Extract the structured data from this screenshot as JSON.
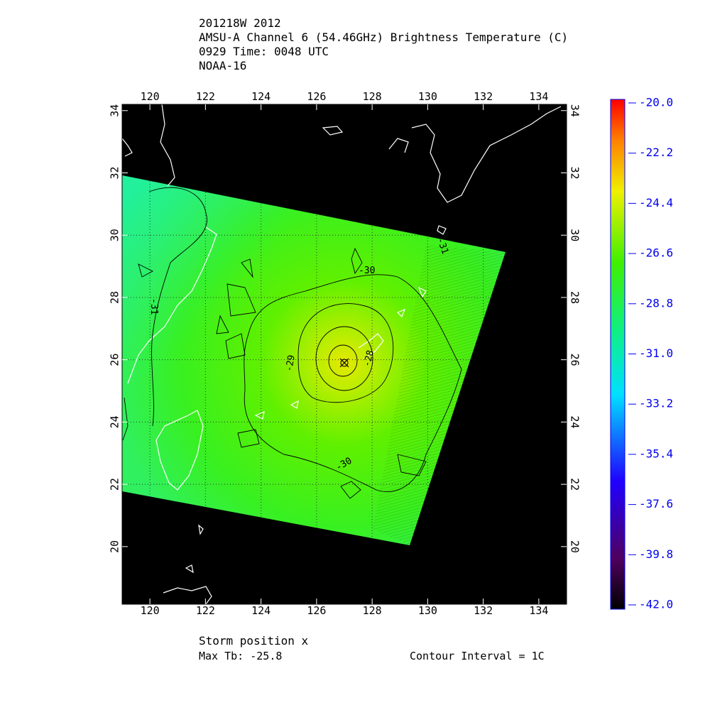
{
  "header": {
    "lines": [
      "201218W 2012",
      "AMSU-A Channel 6 (54.46GHz) Brightness Temperature (C)",
      "0929 Time: 0048 UTC",
      "NOAA-16"
    ]
  },
  "map": {
    "xlim": [
      119,
      135
    ],
    "ylim": [
      18.15,
      34.2
    ],
    "xticks": [
      120,
      122,
      124,
      126,
      128,
      130,
      132,
      134
    ],
    "yticks": [
      20,
      22,
      24,
      26,
      28,
      30,
      32,
      34
    ],
    "grid": true,
    "contour_labels": [
      -30,
      -29,
      -28,
      -31,
      -31,
      -30
    ]
  },
  "colorbar": {
    "ylim": [
      -42,
      -20
    ],
    "ticks": [
      {
        "value": -20,
        "label": "-20.0"
      },
      {
        "value": -22.2,
        "label": "-22.2"
      },
      {
        "value": -24.4,
        "label": "-24.4"
      },
      {
        "value": -26.6,
        "label": "-26.6"
      },
      {
        "value": -28.8,
        "label": "-28.8"
      },
      {
        "value": -31,
        "label": "-31.0"
      },
      {
        "value": -33.2,
        "label": "-33.2"
      },
      {
        "value": -35.4,
        "label": "-35.4"
      },
      {
        "value": -37.6,
        "label": "-37.6"
      },
      {
        "value": -39.8,
        "label": "-39.8"
      },
      {
        "value": -42,
        "label": "-42.0"
      }
    ]
  },
  "footer": {
    "storm_position": "Storm position x",
    "max_tb": "Max Tb: -25.8",
    "contour_interval": "Contour Interval = 1C"
  }
}
